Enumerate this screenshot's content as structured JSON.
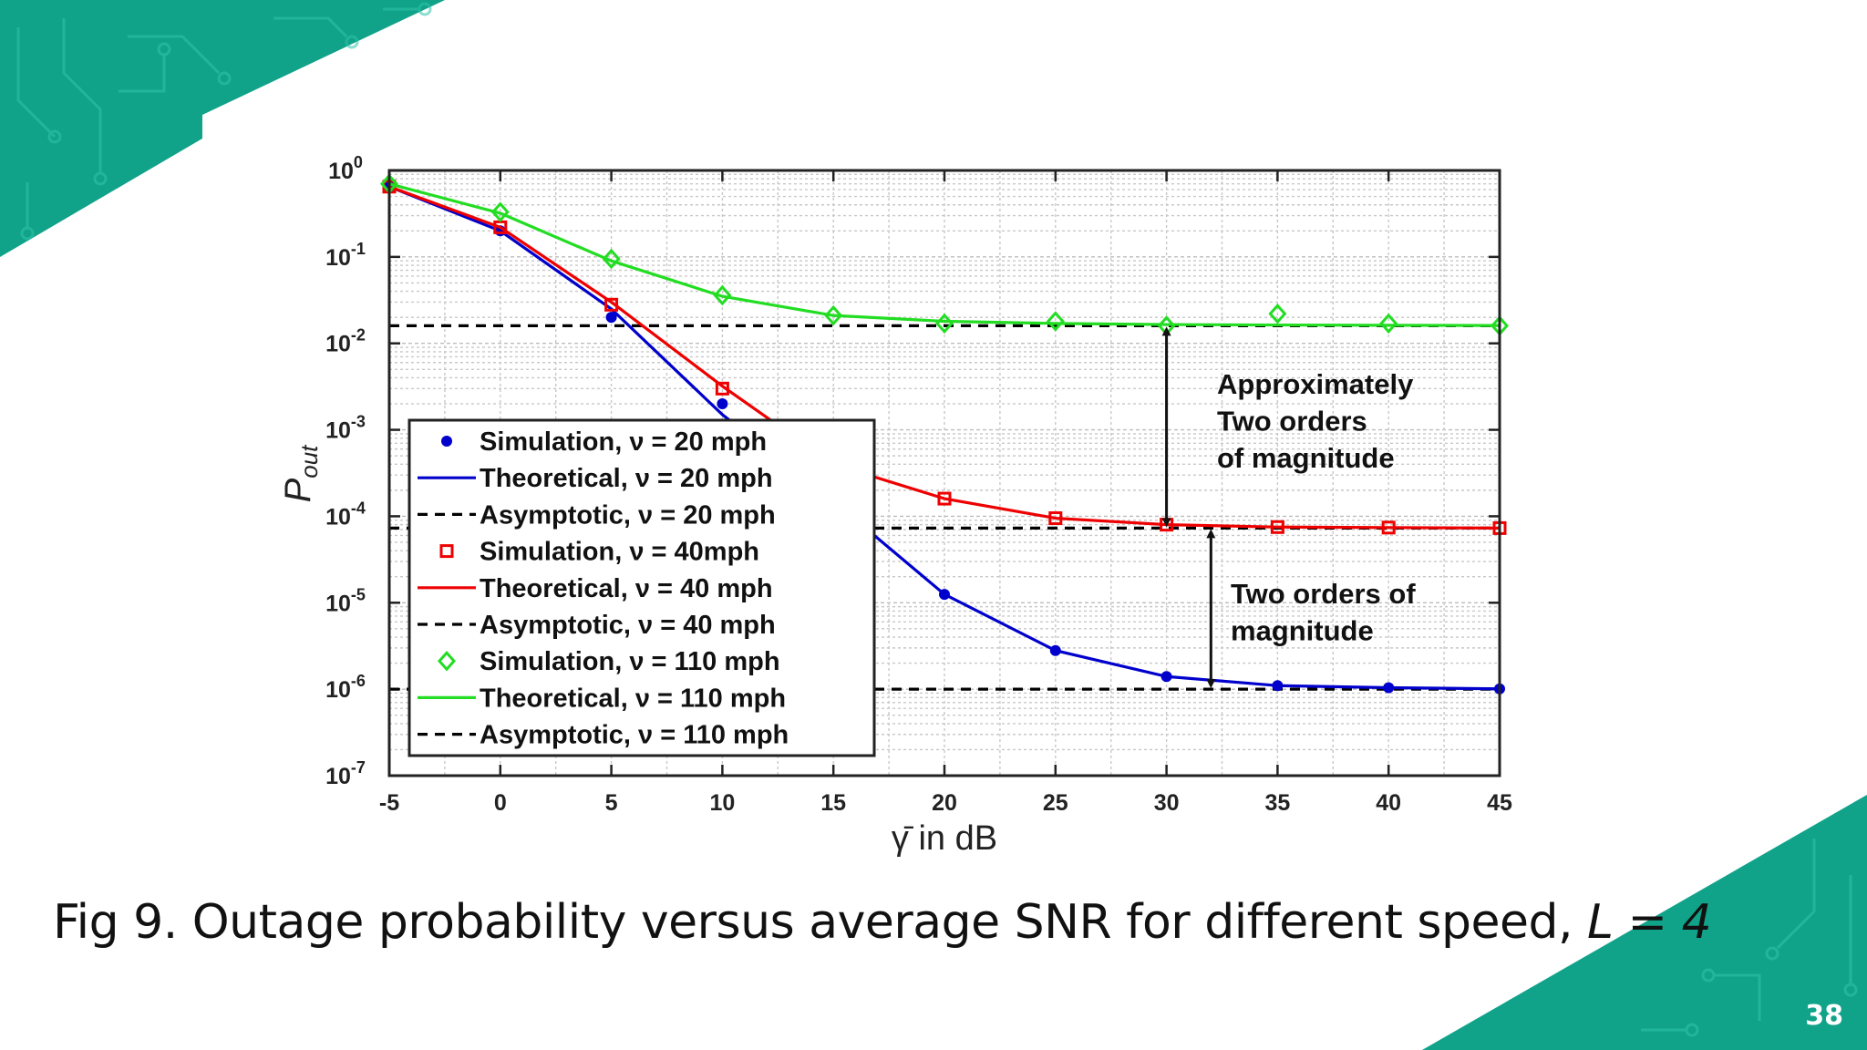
{
  "slide": {
    "caption_text": "Fig 9. Outage probability versus average SNR for different speed, ",
    "caption_italic": "L = 4",
    "page_number": "38",
    "accent_color": "#10a38a"
  },
  "chart_data": {
    "type": "line",
    "title": "",
    "xlabel": "γ̄ in dB",
    "ylabel_main": "P",
    "ylabel_sub": "out",
    "xlim": [
      -5,
      45
    ],
    "ylim_exp": [
      -7,
      0
    ],
    "y_scale": "log",
    "grid": true,
    "legend_position": "lower-left",
    "x_ticks": [
      "-5",
      "0",
      "5",
      "10",
      "15",
      "20",
      "25",
      "30",
      "35",
      "40",
      "45"
    ],
    "y_ticks": [
      {
        "exp": 0,
        "base": "10",
        "sup": "0"
      },
      {
        "exp": -1,
        "base": "10",
        "sup": "-1"
      },
      {
        "exp": -2,
        "base": "10",
        "sup": "-2"
      },
      {
        "exp": -3,
        "base": "10",
        "sup": "-3"
      },
      {
        "exp": -4,
        "base": "10",
        "sup": "-4"
      },
      {
        "exp": -5,
        "base": "10",
        "sup": "-5"
      },
      {
        "exp": -6,
        "base": "10",
        "sup": "-6"
      },
      {
        "exp": -7,
        "base": "10",
        "sup": "-7"
      }
    ],
    "series": [
      {
        "name": "Simulation, ν = 20 mph",
        "kind": "sim",
        "marker": "dot",
        "color": "#0000cc",
        "x": [
          -5,
          0,
          5,
          10,
          15,
          20,
          25,
          30,
          35,
          40,
          45
        ],
        "y": [
          0.65,
          0.2,
          0.02,
          0.002,
          0.00017,
          1.25e-05,
          2.8e-06,
          1.4e-06,
          1.1e-06,
          1.04e-06,
          1.01e-06
        ]
      },
      {
        "name": "Theoretical, ν = 20 mph",
        "kind": "theory",
        "color": "#0000cc",
        "x": [
          -5,
          0,
          5,
          10,
          15,
          20,
          25,
          30,
          35,
          40,
          45
        ],
        "y": [
          0.65,
          0.2,
          0.025,
          0.0015,
          0.00015,
          1.25e-05,
          2.8e-06,
          1.4e-06,
          1.1e-06,
          1.04e-06,
          1.01e-06
        ]
      },
      {
        "name": "Asymptotic, ν = 20 mph",
        "kind": "asym",
        "color": "#000000",
        "x": [
          -5,
          45
        ],
        "y": [
          1e-06,
          1e-06
        ]
      },
      {
        "name": "Simulation, ν = 40mph",
        "kind": "sim",
        "marker": "square",
        "color": "#ee0000",
        "x": [
          -5,
          0,
          5,
          10,
          15,
          20,
          25,
          30,
          35,
          40,
          45
        ],
        "y": [
          0.65,
          0.22,
          0.028,
          0.003,
          0.0004,
          0.00016,
          9.5e-05,
          8e-05,
          7.5e-05,
          7.4e-05,
          7.3e-05
        ]
      },
      {
        "name": "Theoretical, ν = 40 mph",
        "kind": "theory",
        "color": "#ee0000",
        "x": [
          -5,
          0,
          5,
          10,
          15,
          20,
          25,
          30,
          35,
          40,
          45
        ],
        "y": [
          0.65,
          0.22,
          0.03,
          0.0032,
          0.0004,
          0.00016,
          9.5e-05,
          8e-05,
          7.5e-05,
          7.4e-05,
          7.3e-05
        ]
      },
      {
        "name": "Asymptotic, ν = 40 mph",
        "kind": "asym",
        "color": "#000000",
        "x": [
          -5,
          45
        ],
        "y": [
          7.3e-05,
          7.3e-05
        ]
      },
      {
        "name": "Simulation, ν = 110 mph",
        "kind": "sim",
        "marker": "diamond",
        "color": "#22dd22",
        "x": [
          -5,
          0,
          5,
          10,
          15,
          20,
          25,
          30,
          35,
          40,
          45
        ],
        "y": [
          0.7,
          0.33,
          0.095,
          0.036,
          0.021,
          0.017,
          0.018,
          0.016,
          0.022,
          0.017,
          0.016
        ]
      },
      {
        "name": "Theoretical, ν = 110 mph",
        "kind": "theory",
        "color": "#22dd22",
        "x": [
          -5,
          0,
          5,
          10,
          15,
          20,
          25,
          30,
          35,
          40,
          45
        ],
        "y": [
          0.7,
          0.32,
          0.09,
          0.035,
          0.021,
          0.018,
          0.017,
          0.0165,
          0.0163,
          0.0162,
          0.0161
        ]
      },
      {
        "name": "Asymptotic, ν = 110 mph",
        "kind": "asym",
        "color": "#000000",
        "x": [
          -5,
          45
        ],
        "y": [
          0.016,
          0.016
        ]
      }
    ],
    "annotations": [
      {
        "lines": [
          "Approximately",
          "Two orders",
          "of magnitude"
        ],
        "arrow_x": 30,
        "arrow_y": [
          0.016,
          7.3e-05
        ]
      },
      {
        "lines": [
          "Two orders of",
          "magnitude"
        ],
        "arrow_x": 32,
        "arrow_y": [
          7.3e-05,
          1e-06
        ]
      }
    ]
  }
}
